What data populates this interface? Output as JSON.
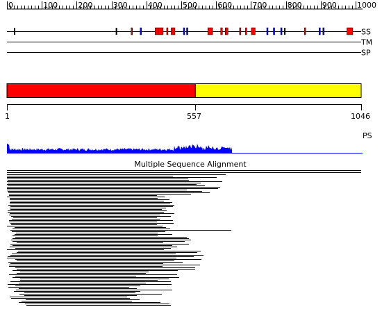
{
  "ruler": {
    "min": 0,
    "max": 1000,
    "major_step": 100,
    "minor_step": 10,
    "tick_labels": [
      "0",
      "100",
      "200",
      "300",
      "400",
      "500",
      "600",
      "700",
      "800",
      "900",
      "1000"
    ]
  },
  "tracks": {
    "ss": {
      "label": "SS",
      "helix_color": "#ff0000",
      "strand_color": "#0000ff",
      "coil_color": "#000000",
      "segments": [
        {
          "start": 20,
          "end": 22,
          "type": "coil"
        },
        {
          "start": 312,
          "end": 314,
          "type": "coil"
        },
        {
          "start": 356,
          "end": 360,
          "type": "helix"
        },
        {
          "start": 382,
          "end": 386,
          "type": "strand"
        },
        {
          "start": 425,
          "end": 433,
          "type": "helix"
        },
        {
          "start": 434,
          "end": 448,
          "type": "helix"
        },
        {
          "start": 458,
          "end": 462,
          "type": "helix"
        },
        {
          "start": 471,
          "end": 482,
          "type": "helix"
        },
        {
          "start": 506,
          "end": 510,
          "type": "strand"
        },
        {
          "start": 515,
          "end": 519,
          "type": "strand"
        },
        {
          "start": 576,
          "end": 590,
          "type": "helix"
        },
        {
          "start": 613,
          "end": 618,
          "type": "helix"
        },
        {
          "start": 626,
          "end": 634,
          "type": "helix"
        },
        {
          "start": 667,
          "end": 671,
          "type": "helix"
        },
        {
          "start": 684,
          "end": 688,
          "type": "helix"
        },
        {
          "start": 701,
          "end": 712,
          "type": "helix"
        },
        {
          "start": 745,
          "end": 749,
          "type": "strand"
        },
        {
          "start": 764,
          "end": 768,
          "type": "strand"
        },
        {
          "start": 785,
          "end": 789,
          "type": "strand"
        },
        {
          "start": 795,
          "end": 799,
          "type": "coil"
        },
        {
          "start": 853,
          "end": 857,
          "type": "helix"
        },
        {
          "start": 895,
          "end": 899,
          "type": "strand"
        },
        {
          "start": 906,
          "end": 910,
          "type": "strand"
        },
        {
          "start": 975,
          "end": 992,
          "type": "helix"
        }
      ]
    },
    "tm": {
      "label": "TM"
    },
    "sp": {
      "label": "SP"
    }
  },
  "domains": {
    "total_length": 1046,
    "regions": [
      {
        "start": 1,
        "end": 557,
        "color": "#ff0000"
      },
      {
        "start": 557,
        "end": 1046,
        "color": "#ffff00"
      }
    ],
    "boundary_labels": [
      "1",
      "557",
      "1046"
    ]
  },
  "ps": {
    "label": "PS",
    "color": "#0000ff",
    "data_end": 665
  },
  "msa": {
    "title": "Multiple Sequence Alignment"
  }
}
